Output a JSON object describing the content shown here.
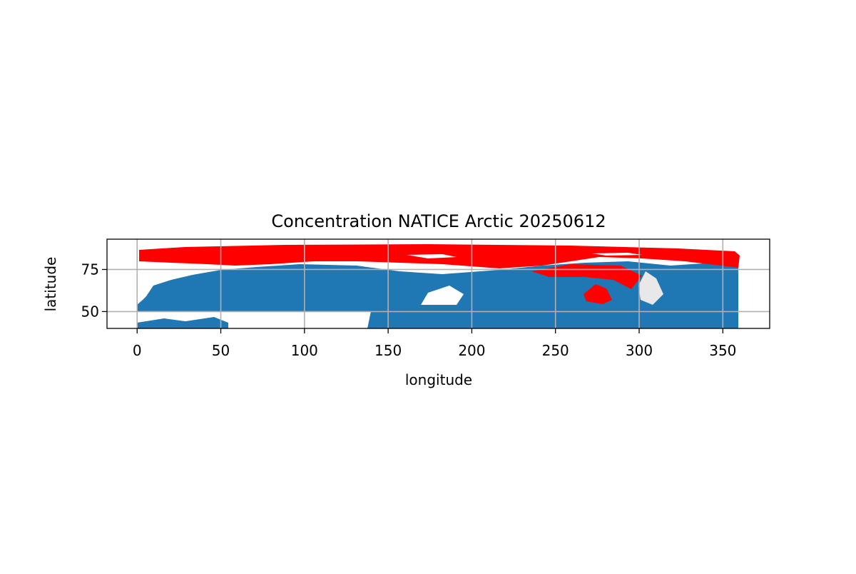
{
  "chart_data": {
    "type": "map",
    "title": "Concentration NATICE Arctic  20250612",
    "x_label": "longitude",
    "y_label": "latitude",
    "xlim": [
      -18,
      378
    ],
    "ylim": [
      40,
      93
    ],
    "xticks": [
      0,
      50,
      100,
      150,
      200,
      250,
      300,
      350
    ],
    "yticks": [
      50,
      75
    ],
    "grid": true
  }
}
